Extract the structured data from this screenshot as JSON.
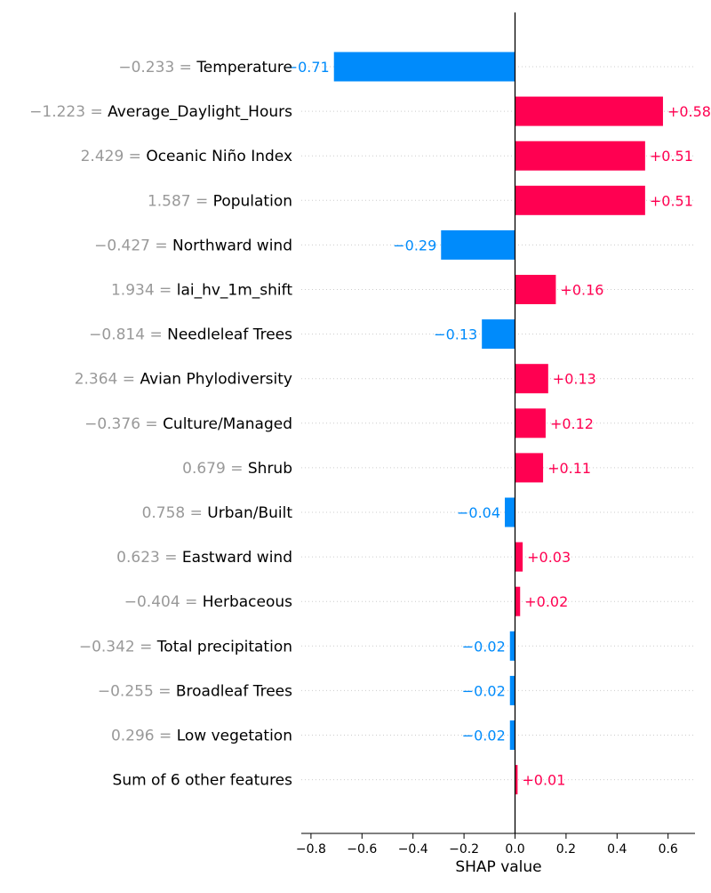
{
  "colors": {
    "positive": "#ff0051",
    "negative": "#008bfb",
    "value_text": "#999999",
    "label_text": "#000000",
    "grid": "#cccccc",
    "axis": "#000000"
  },
  "chart_data": {
    "type": "bar",
    "orientation": "horizontal",
    "xlabel": "SHAP value",
    "xlim": [
      -0.84,
      0.71
    ],
    "xticks": [
      -0.8,
      -0.6,
      -0.4,
      -0.2,
      0.0,
      0.2,
      0.4,
      0.6
    ],
    "xtick_labels": [
      "−0.8",
      "−0.6",
      "−0.4",
      "−0.2",
      "0.0",
      "0.2",
      "0.4",
      "0.6"
    ],
    "grid": "horizontal dotted",
    "features": [
      {
        "value": "−0.233",
        "name": "Temperature",
        "shap": -0.71,
        "label": "−0.71"
      },
      {
        "value": "−1.223",
        "name": "Average_Daylight_Hours",
        "shap": 0.58,
        "label": "+0.58"
      },
      {
        "value": "2.429",
        "name": "Oceanic Niño Index",
        "shap": 0.51,
        "label": "+0.51"
      },
      {
        "value": "1.587",
        "name": "Population",
        "shap": 0.51,
        "label": "+0.51"
      },
      {
        "value": "−0.427",
        "name": "Northward wind",
        "shap": -0.29,
        "label": "−0.29"
      },
      {
        "value": "1.934",
        "name": "lai_hv_1m_shift",
        "shap": 0.16,
        "label": "+0.16"
      },
      {
        "value": "−0.814",
        "name": "Needleleaf Trees",
        "shap": -0.13,
        "label": "−0.13"
      },
      {
        "value": "2.364",
        "name": "Avian Phylodiversity",
        "shap": 0.13,
        "label": "+0.13"
      },
      {
        "value": "−0.376",
        "name": "Culture/Managed",
        "shap": 0.12,
        "label": "+0.12"
      },
      {
        "value": "0.679",
        "name": "Shrub",
        "shap": 0.11,
        "label": "+0.11"
      },
      {
        "value": "0.758",
        "name": "Urban/Built",
        "shap": -0.04,
        "label": "−0.04"
      },
      {
        "value": "0.623",
        "name": "Eastward wind",
        "shap": 0.03,
        "label": "+0.03"
      },
      {
        "value": "−0.404",
        "name": "Herbaceous",
        "shap": 0.02,
        "label": "+0.02"
      },
      {
        "value": "−0.342",
        "name": "Total precipitation",
        "shap": -0.02,
        "label": "−0.02"
      },
      {
        "value": "−0.255",
        "name": "Broadleaf Trees",
        "shap": -0.02,
        "label": "−0.02"
      },
      {
        "value": "0.296",
        "name": "Low vegetation",
        "shap": -0.02,
        "label": "−0.02"
      },
      {
        "value": "",
        "name": "Sum of 6 other features",
        "shap": 0.01,
        "label": "+0.01"
      }
    ]
  }
}
